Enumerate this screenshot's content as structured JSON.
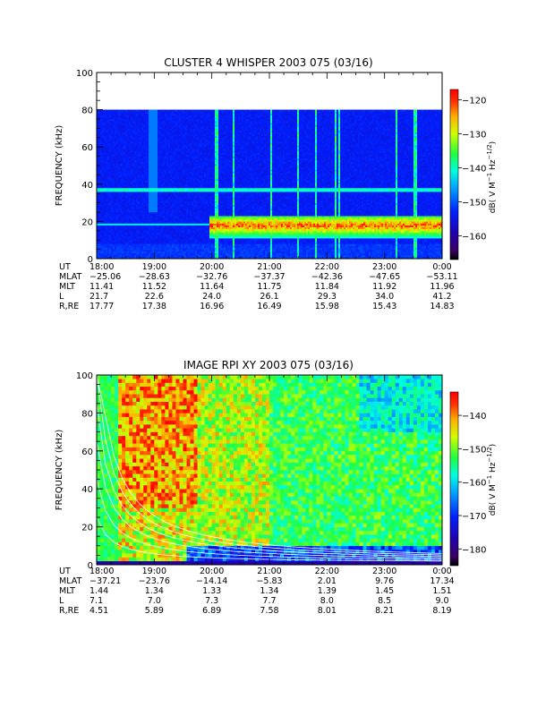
{
  "chart_data": [
    {
      "type": "heatmap",
      "title": "CLUSTER 4 WHISPER 2003 075 (03/16)",
      "ylabel": "FREQUENCY (kHz)",
      "ylim": [
        0,
        100
      ],
      "yticks": [
        "0",
        "20",
        "40",
        "60",
        "80",
        "100"
      ],
      "data_top_khz": 80,
      "x_range_hours": [
        18,
        24
      ],
      "colorbar": {
        "label": "dB( V M-1 Hz-1/2)",
        "range": [
          -167,
          -117
        ],
        "ticks": [
          -120,
          -130,
          -140,
          -150,
          -160
        ]
      },
      "ephemeris": {
        "labels": [
          "UT",
          "MLAT",
          "MLT",
          "L",
          "R,RE"
        ],
        "columns": [
          [
            "18:00",
            "-25.06",
            "11.41",
            "21.7",
            "17.77"
          ],
          [
            "19:00",
            "-28.63",
            "11.52",
            "22.6",
            "17.38"
          ],
          [
            "20:00",
            "-32.76",
            "11.64",
            "24.0",
            "16.96"
          ],
          [
            "21:00",
            "-37.37",
            "11.75",
            "26.1",
            "16.49"
          ],
          [
            "22:00",
            "-42.36",
            "11.84",
            "29.3",
            "15.98"
          ],
          [
            "23:00",
            "-47.65",
            "11.92",
            "34.0",
            "15.43"
          ],
          [
            "0:00",
            "-53.11",
            "11.96",
            "41.2",
            "14.83"
          ]
        ]
      }
    },
    {
      "type": "heatmap",
      "title": "IMAGE RPI XY 2003 075 (03/16)",
      "ylabel": "FREQUENCY (kHz)",
      "ylim": [
        0,
        100
      ],
      "yticks": [
        "0",
        "20",
        "40",
        "60",
        "80",
        "100"
      ],
      "x_range_hours": [
        18,
        24
      ],
      "colorbar": {
        "label": "dB( V M-1 Hz-1/2)",
        "range": [
          -185,
          -133
        ],
        "ticks": [
          -140,
          -150,
          -160,
          -170,
          -180
        ]
      },
      "ephemeris": {
        "labels": [
          "UT",
          "MLAT",
          "MLT",
          "L",
          "R,RE"
        ],
        "columns": [
          [
            "18:00",
            "-37.21",
            "1.44",
            "7.1",
            "4.51"
          ],
          [
            "19:00",
            "-23.76",
            "1.34",
            "7.0",
            "5.89"
          ],
          [
            "20:00",
            "-14.14",
            "1.33",
            "7.3",
            "6.89"
          ],
          [
            "21:00",
            "-5.83",
            "1.34",
            "7.7",
            "7.58"
          ],
          [
            "22:00",
            "2.01",
            "1.39",
            "8.0",
            "8.01"
          ],
          [
            "23:00",
            "9.76",
            "1.45",
            "8.5",
            "8.21"
          ],
          [
            "0:00",
            "17.34",
            "1.51",
            "9.0",
            "8.19"
          ]
        ]
      }
    }
  ]
}
